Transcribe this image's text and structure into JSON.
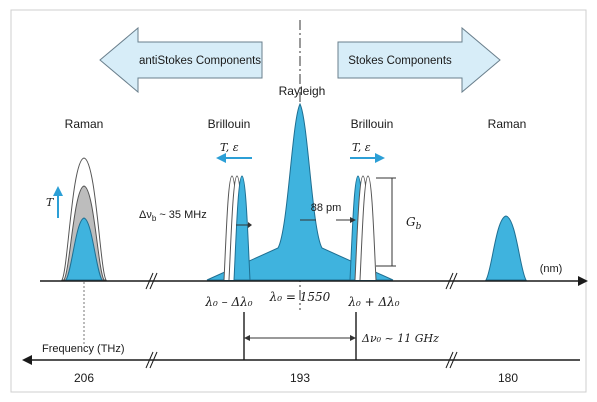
{
  "arrows": {
    "left_label": "antiStokes  Components",
    "right_label": "Stokes Components"
  },
  "peaks": {
    "center": "Rayleigh",
    "brillouin_left": "Brillouin",
    "brillouin_right": "Brillouin",
    "raman_left": "Raman",
    "raman_right": "Raman"
  },
  "annotations": {
    "t_eps_left": "T, ε",
    "t_eps_right": "T, ε",
    "t_label": "T",
    "delta_nu_b": "Δν",
    "delta_nu_b_sub": "b",
    "delta_nu_b_value": "~ 35 MHz",
    "pm_88": "88 pm",
    "gb": "G",
    "gb_sub": "b",
    "unit_nm": "(nm)"
  },
  "wavelength_axis": {
    "lambda_minus": "λ₀ – Δλ₀",
    "lambda_center": "λ₀ = 1550",
    "lambda_plus": "λ₀ + Δλ₀"
  },
  "frequency_axis": {
    "title": "Frequency  (THz)",
    "delta_nu0": "Δν₀ ~ 11 GHz",
    "tick_206": "206",
    "tick_193": "193",
    "tick_180": "180"
  },
  "colors": {
    "fill_cyan": "#3fb3de",
    "fill_gray": "#bdbdbd",
    "arrow_fill": "#d7edf8",
    "arrow_blue": "#2c9fd6",
    "line": "#1a1a1a"
  }
}
